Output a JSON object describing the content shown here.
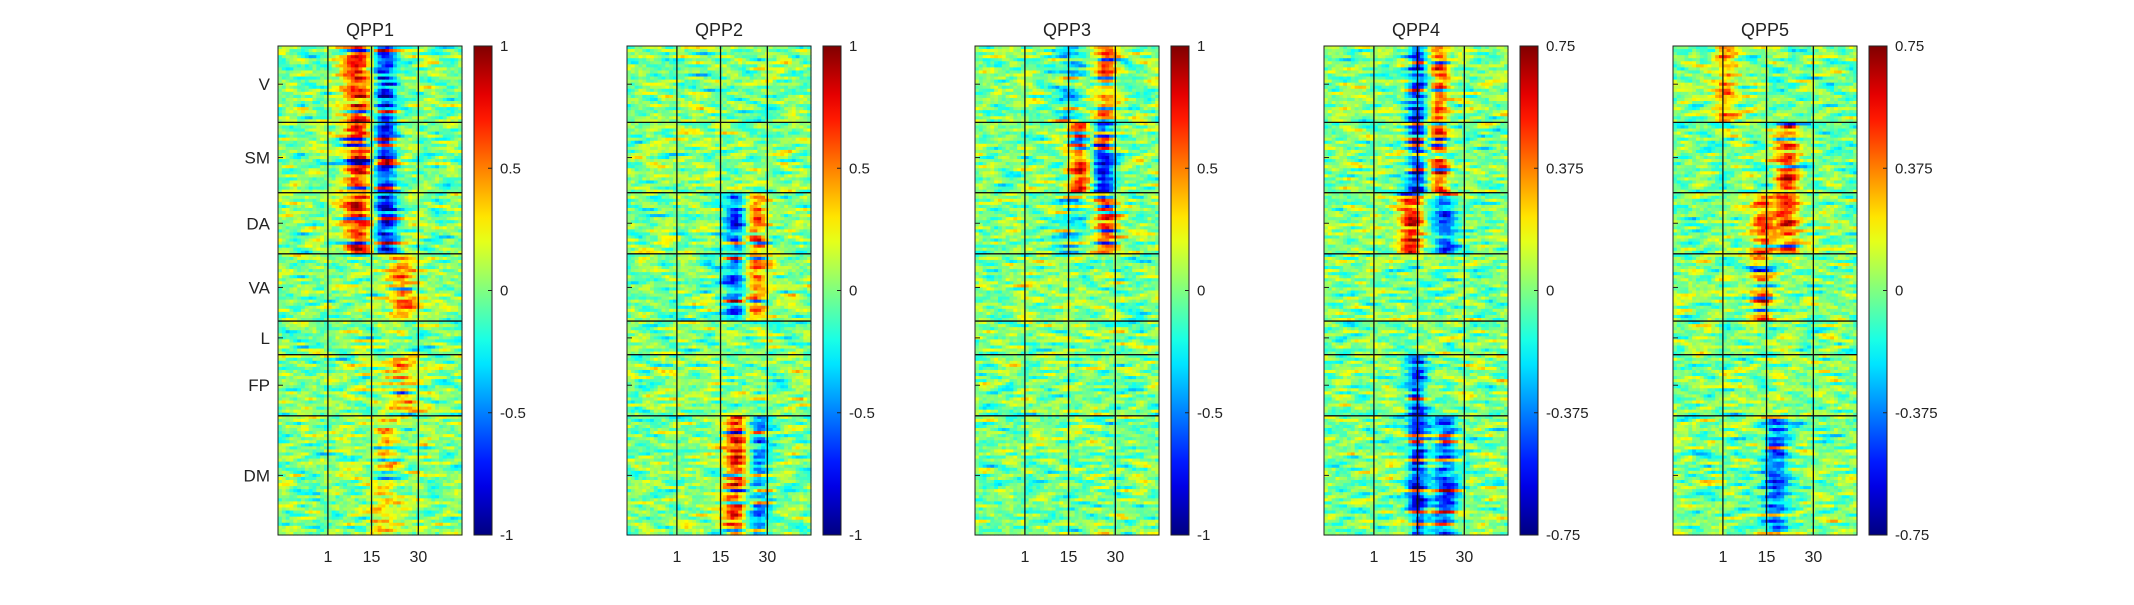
{
  "chart_data": [
    {
      "type": "heatmap",
      "title": "QPP1",
      "x_ticks": [
        "1",
        "15",
        "30"
      ],
      "y_labels": [
        "V",
        "SM",
        "DA",
        "VA",
        "L",
        "FP",
        "DM"
      ],
      "colorbar_ticks": [
        "1",
        "0.5",
        "0",
        "-0.5",
        "-1"
      ],
      "clim": [
        -1,
        1
      ],
      "colormap": "jet",
      "pattern": [
        {
          "t_center": 11,
          "t_width": 5,
          "amplitude": 0.85,
          "networks": [
            "V",
            "SM",
            "DA"
          ]
        },
        {
          "t_center": 19,
          "t_width": 4,
          "amplitude": -0.9,
          "networks": [
            "V",
            "SM",
            "DA"
          ]
        },
        {
          "t_center": 25,
          "t_width": 5,
          "amplitude": 0.45,
          "networks": [
            "VA",
            "FP"
          ]
        },
        {
          "t_center": 20,
          "t_width": 5,
          "amplitude": 0.3,
          "networks": [
            "DM"
          ]
        }
      ]
    },
    {
      "type": "heatmap",
      "title": "QPP2",
      "x_ticks": [
        "1",
        "15",
        "30"
      ],
      "y_labels": [
        "V",
        "SM",
        "DA",
        "VA",
        "L",
        "FP",
        "DM"
      ],
      "colorbar_ticks": [
        "1",
        "0.5",
        "0",
        "-0.5",
        "-1"
      ],
      "clim": [
        -1,
        1
      ],
      "colormap": "jet",
      "pattern": [
        {
          "t_center": 20,
          "t_width": 4,
          "amplitude": -0.7,
          "networks": [
            "DA",
            "VA"
          ]
        },
        {
          "t_center": 26,
          "t_width": 4,
          "amplitude": 0.65,
          "networks": [
            "DA",
            "VA"
          ]
        },
        {
          "t_center": 20,
          "t_width": 4,
          "amplitude": 0.75,
          "networks": [
            "DM"
          ]
        },
        {
          "t_center": 27,
          "t_width": 4,
          "amplitude": -0.55,
          "networks": [
            "DM"
          ]
        }
      ]
    },
    {
      "type": "heatmap",
      "title": "QPP3",
      "x_ticks": [
        "1",
        "15",
        "30"
      ],
      "y_labels": [
        "V",
        "SM",
        "DA",
        "VA",
        "L",
        "FP",
        "DM"
      ],
      "colorbar_ticks": [
        "1",
        "0.5",
        "0",
        "-0.5",
        "-1"
      ],
      "clim": [
        -1,
        1
      ],
      "colormap": "jet",
      "pattern": [
        {
          "t_center": 19,
          "t_width": 4,
          "amplitude": 0.8,
          "networks": [
            "SM"
          ]
        },
        {
          "t_center": 26,
          "t_width": 4,
          "amplitude": -0.85,
          "networks": [
            "SM"
          ]
        },
        {
          "t_center": 27,
          "t_width": 4,
          "amplitude": 0.6,
          "networks": [
            "V",
            "DA"
          ]
        },
        {
          "t_center": 15,
          "t_width": 5,
          "amplitude": -0.35,
          "networks": [
            "V",
            "DA"
          ]
        }
      ]
    },
    {
      "type": "heatmap",
      "title": "QPP4",
      "x_ticks": [
        "1",
        "15",
        "30"
      ],
      "y_labels": [
        "V",
        "SM",
        "DA",
        "VA",
        "L",
        "FP",
        "DM"
      ],
      "colorbar_ticks": [
        "0.75",
        "0.375",
        "0",
        "-0.375",
        "-0.75"
      ],
      "clim": [
        -0.75,
        0.75
      ],
      "colormap": "jet",
      "pattern": [
        {
          "t_center": 15,
          "t_width": 3,
          "amplitude": -0.6,
          "networks": [
            "V",
            "SM",
            "FP",
            "DM"
          ]
        },
        {
          "t_center": 22,
          "t_width": 3,
          "amplitude": 0.55,
          "networks": [
            "V",
            "SM"
          ]
        },
        {
          "t_center": 13,
          "t_width": 4,
          "amplitude": 0.6,
          "networks": [
            "DA"
          ]
        },
        {
          "t_center": 24,
          "t_width": 4,
          "amplitude": -0.5,
          "networks": [
            "DA",
            "DM"
          ]
        }
      ]
    },
    {
      "type": "heatmap",
      "title": "QPP5",
      "x_ticks": [
        "1",
        "15",
        "30"
      ],
      "y_labels": [
        "V",
        "SM",
        "DA",
        "VA",
        "L",
        "FP",
        "DM"
      ],
      "colorbar_ticks": [
        "0.75",
        "0.375",
        "0",
        "-0.375",
        "-0.75"
      ],
      "clim": [
        -0.75,
        0.75
      ],
      "colormap": "jet",
      "pattern": [
        {
          "t_center": 14,
          "t_width": 4,
          "amplitude": 0.45,
          "networks": [
            "DA",
            "VA"
          ]
        },
        {
          "t_center": 22,
          "t_width": 4,
          "amplitude": 0.5,
          "networks": [
            "DA",
            "SM"
          ]
        },
        {
          "t_center": 18,
          "t_width": 4,
          "amplitude": -0.5,
          "networks": [
            "DM"
          ]
        },
        {
          "t_center": 2,
          "t_width": 4,
          "amplitude": 0.35,
          "networks": [
            "V"
          ]
        }
      ]
    }
  ]
}
